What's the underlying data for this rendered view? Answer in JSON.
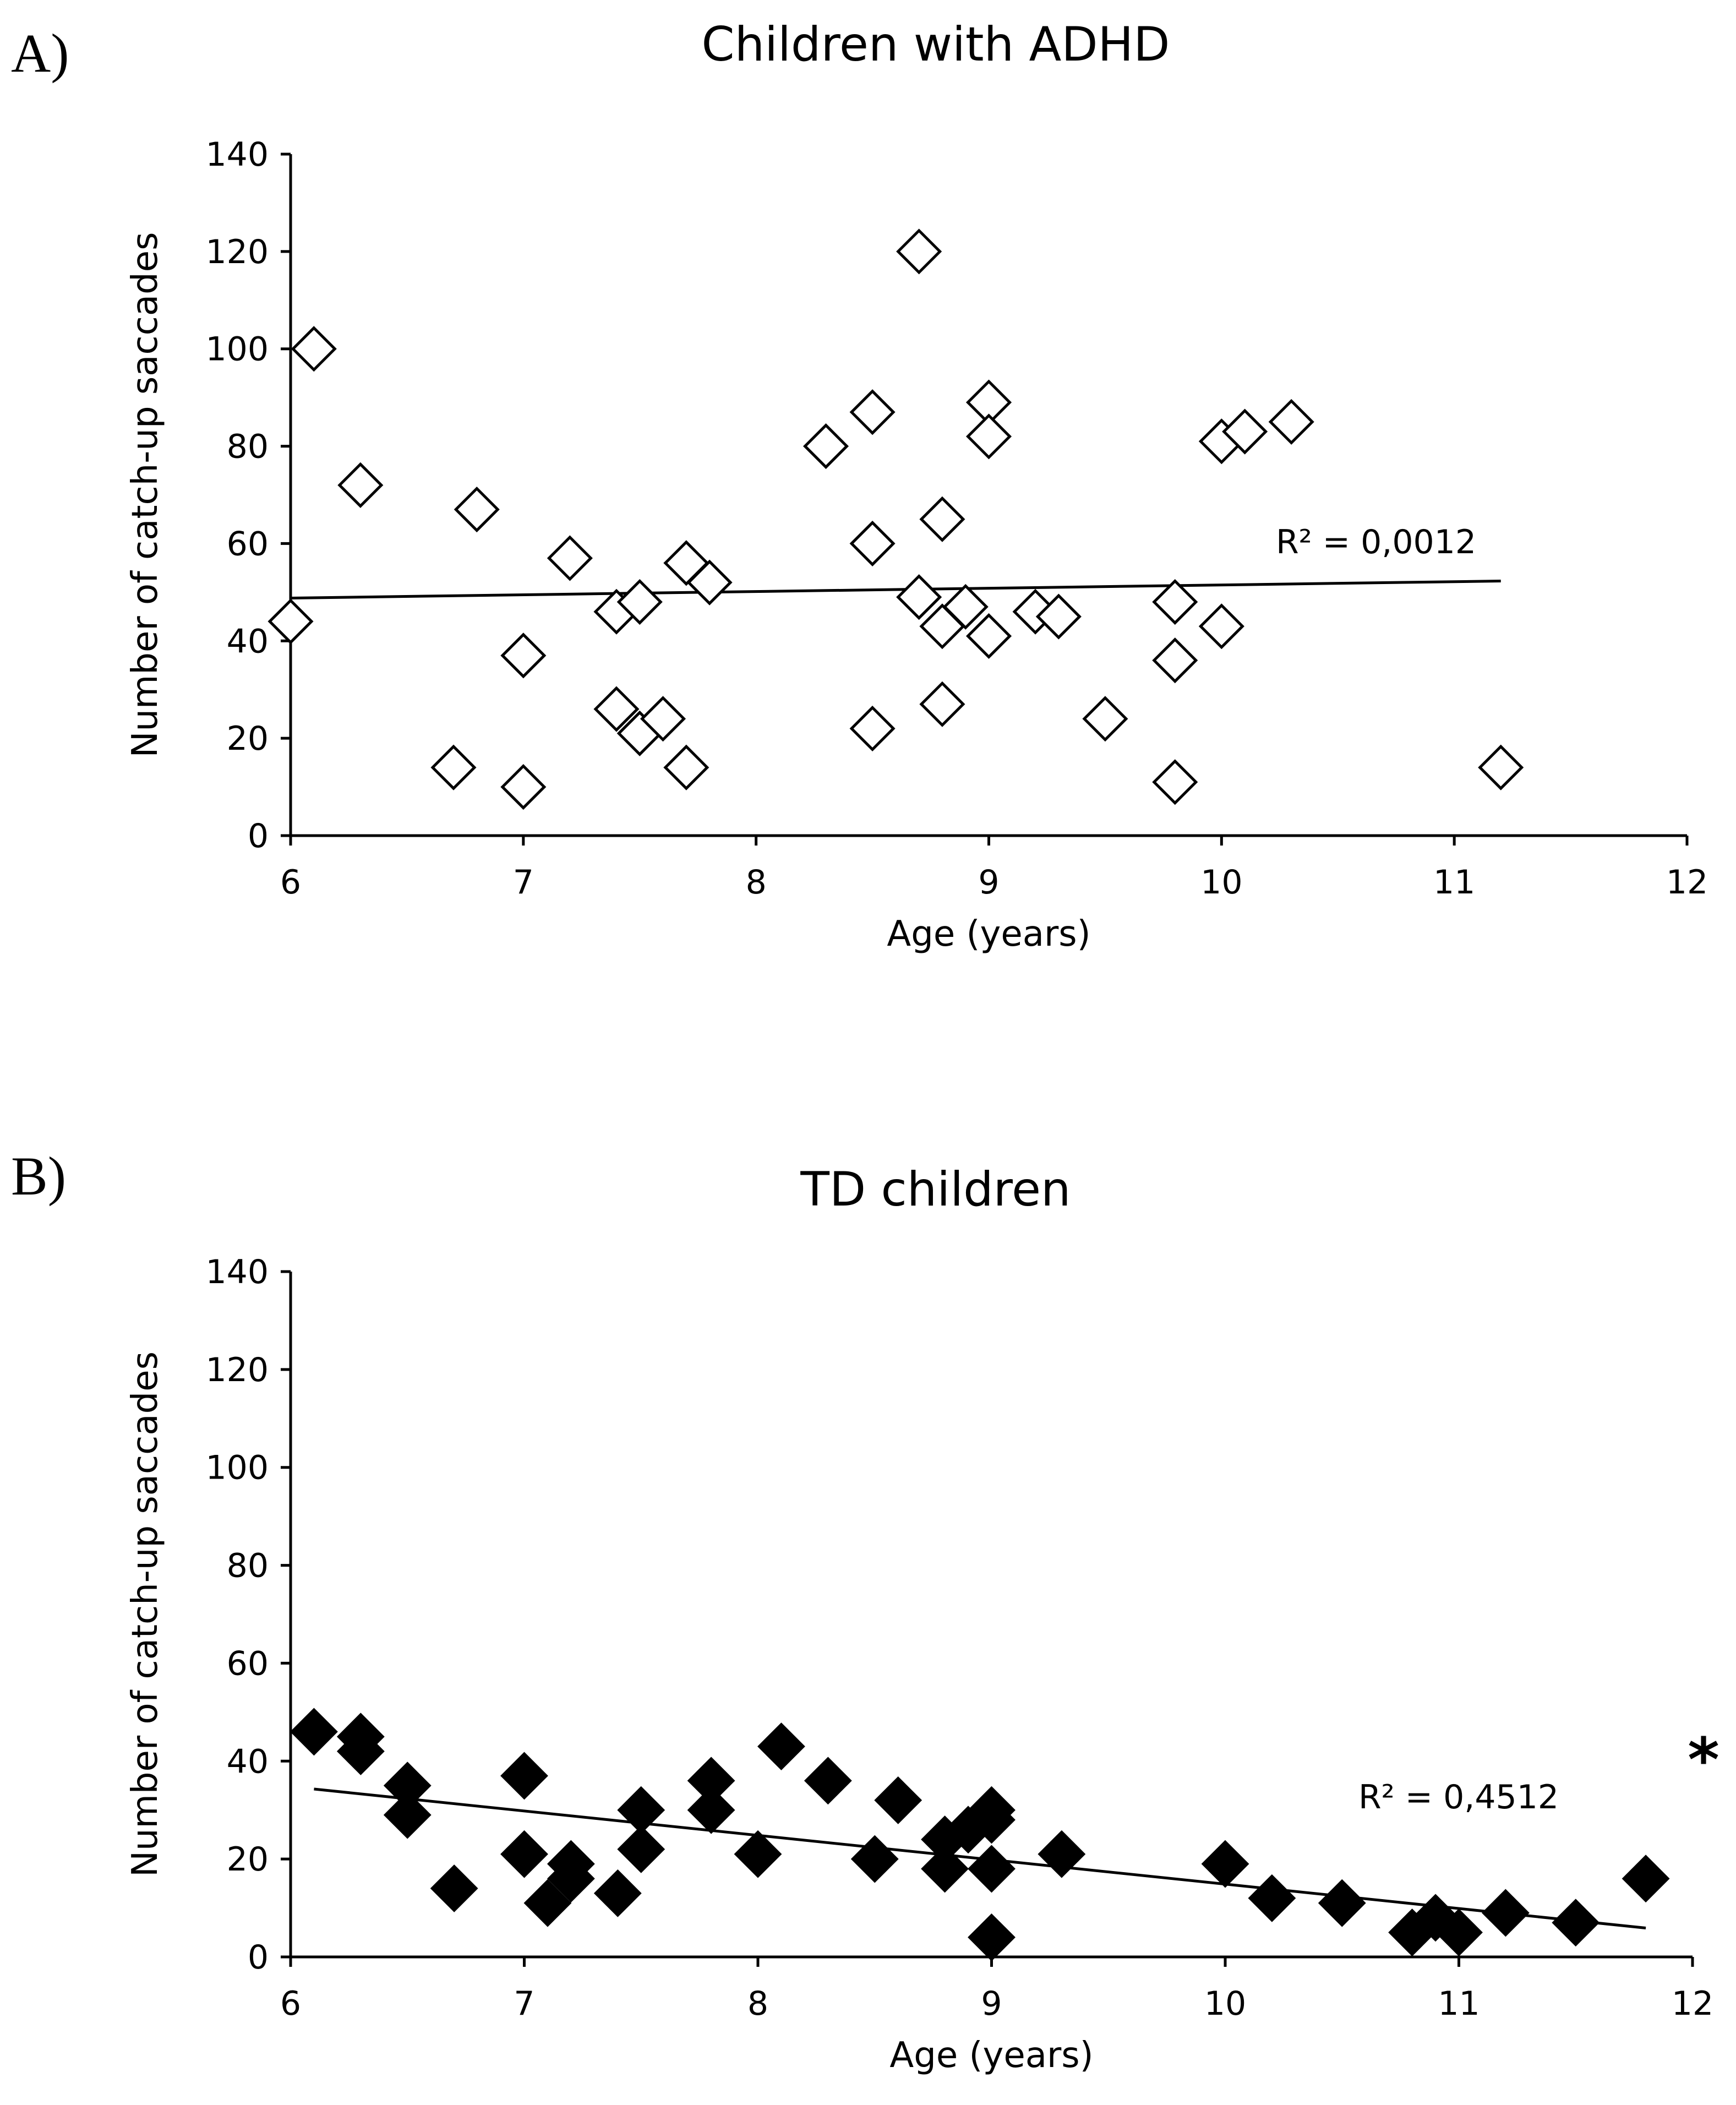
{
  "chart_data": [
    {
      "type": "scatter",
      "panel_label": "A)",
      "title": "Children with ADHD",
      "xlabel": "Age (years)",
      "ylabel": "Number of catch-up saccades",
      "xlim": [
        6,
        12
      ],
      "ylim": [
        0,
        140
      ],
      "xticks": [
        "6",
        "7",
        "8",
        "9",
        "10",
        "11",
        "12"
      ],
      "yticks": [
        "0",
        "20",
        "40",
        "60",
        "80",
        "100",
        "120",
        "140"
      ],
      "marker": "open-diamond",
      "points": [
        [
          6.0,
          44
        ],
        [
          6.1,
          100
        ],
        [
          6.3,
          72
        ],
        [
          6.7,
          14
        ],
        [
          6.8,
          67
        ],
        [
          7.0,
          37
        ],
        [
          7.0,
          10
        ],
        [
          7.2,
          57
        ],
        [
          7.4,
          46
        ],
        [
          7.4,
          26
        ],
        [
          7.5,
          48
        ],
        [
          7.5,
          21
        ],
        [
          7.6,
          24
        ],
        [
          7.7,
          56
        ],
        [
          7.7,
          14
        ],
        [
          7.8,
          52
        ],
        [
          8.3,
          80
        ],
        [
          8.5,
          87
        ],
        [
          8.5,
          60
        ],
        [
          8.5,
          22
        ],
        [
          8.7,
          120
        ],
        [
          8.7,
          49
        ],
        [
          8.8,
          65
        ],
        [
          8.8,
          43
        ],
        [
          8.8,
          27
        ],
        [
          8.9,
          47
        ],
        [
          9.0,
          89
        ],
        [
          9.0,
          82
        ],
        [
          9.0,
          41
        ],
        [
          9.2,
          46
        ],
        [
          9.3,
          45
        ],
        [
          9.5,
          24
        ],
        [
          9.8,
          48
        ],
        [
          9.8,
          36
        ],
        [
          9.8,
          11
        ],
        [
          10.0,
          81
        ],
        [
          10.0,
          43
        ],
        [
          10.1,
          83
        ],
        [
          10.3,
          85
        ],
        [
          11.2,
          14
        ]
      ],
      "trendline": {
        "x": [
          6.0,
          11.2
        ],
        "y": [
          48.8,
          52.3
        ]
      },
      "r2_label": "R² = 0,0012",
      "significance": ""
    },
    {
      "type": "scatter",
      "panel_label": "B)",
      "title": "TD children",
      "xlabel": "Age (years)",
      "ylabel": "Number of catch-up saccades",
      "xlim": [
        6,
        12
      ],
      "ylim": [
        0,
        140
      ],
      "xticks": [
        "6",
        "7",
        "8",
        "9",
        "10",
        "11",
        "12"
      ],
      "yticks": [
        "0",
        "20",
        "40",
        "60",
        "80",
        "100",
        "120",
        "140"
      ],
      "marker": "filled-diamond",
      "points": [
        [
          6.1,
          46
        ],
        [
          6.3,
          45
        ],
        [
          6.3,
          42
        ],
        [
          6.5,
          35
        ],
        [
          6.5,
          29
        ],
        [
          6.7,
          14
        ],
        [
          7.0,
          37
        ],
        [
          7.0,
          21
        ],
        [
          7.1,
          11
        ],
        [
          7.2,
          19
        ],
        [
          7.2,
          16
        ],
        [
          7.4,
          13
        ],
        [
          7.5,
          30
        ],
        [
          7.5,
          22
        ],
        [
          7.8,
          36
        ],
        [
          7.8,
          30
        ],
        [
          8.0,
          21
        ],
        [
          8.1,
          43
        ],
        [
          8.3,
          36
        ],
        [
          8.5,
          20
        ],
        [
          8.6,
          32
        ],
        [
          8.8,
          24
        ],
        [
          8.8,
          18
        ],
        [
          8.9,
          26
        ],
        [
          9.0,
          30
        ],
        [
          9.0,
          28
        ],
        [
          9.0,
          18
        ],
        [
          9.0,
          4
        ],
        [
          9.3,
          21
        ],
        [
          10.0,
          19
        ],
        [
          10.2,
          12
        ],
        [
          10.5,
          11
        ],
        [
          10.8,
          5
        ],
        [
          10.9,
          8
        ],
        [
          11.0,
          5
        ],
        [
          11.2,
          9
        ],
        [
          11.5,
          7
        ],
        [
          11.8,
          16
        ]
      ],
      "trendline": {
        "x": [
          6.1,
          11.8
        ],
        "y": [
          34.3,
          5.9
        ]
      },
      "r2_label": "R² = 0,4512",
      "significance": "*"
    }
  ]
}
